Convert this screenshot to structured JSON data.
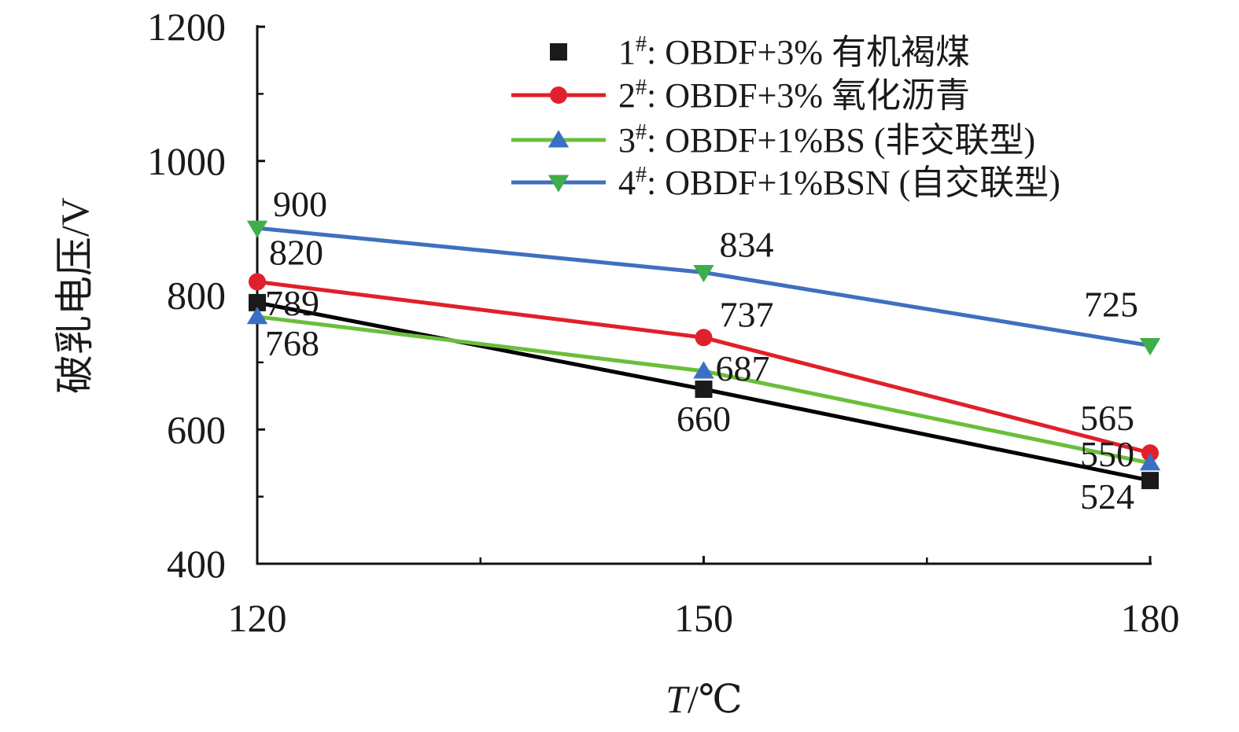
{
  "chart_data": {
    "type": "line",
    "title": "",
    "xlabel_italic": "T",
    "xlabel_rest": "/℃",
    "ylabel": "破乳电压/V",
    "x": [
      120,
      150,
      180
    ],
    "xticks": [
      "120",
      "150",
      "180"
    ],
    "xlim": [
      120,
      180
    ],
    "ylim": [
      400,
      1200
    ],
    "yticks": [
      "400",
      "600",
      "800",
      "1000",
      "1200"
    ],
    "grid": false,
    "legend_position": "top-right",
    "series": [
      {
        "name": "OBDF+3% 有机褐煤",
        "prefix_number": "1",
        "superscript": "#",
        "values": [
          789,
          660,
          524
        ],
        "labels": [
          "789",
          "660",
          "524"
        ],
        "line_color": "#000000",
        "marker_color": "#1a1a1a",
        "marker": "square",
        "show_line_in_legend": false
      },
      {
        "name": "OBDF+3% 氧化沥青",
        "prefix_number": "2",
        "superscript": "#",
        "values": [
          820,
          737,
          565
        ],
        "labels": [
          "820",
          "737",
          "565"
        ],
        "line_color": "#e0202a",
        "marker_color": "#e0202a",
        "marker": "circle",
        "show_line_in_legend": true
      },
      {
        "name": "OBDF+1%BS (非交联型)",
        "prefix_number": "3",
        "superscript": "#",
        "values": [
          768,
          687,
          550
        ],
        "labels": [
          "768",
          "687",
          "550"
        ],
        "line_color": "#6abf3a",
        "marker_color": "#3a6fc4",
        "marker": "triangle-up",
        "show_line_in_legend": true
      },
      {
        "name": "OBDF+1%BSN (自交联型)",
        "prefix_number": "4",
        "superscript": "#",
        "values": [
          900,
          834,
          725
        ],
        "labels": [
          "900",
          "834",
          "725"
        ],
        "line_color": "#3f6fbf",
        "marker_color": "#3fae4a",
        "marker": "triangle-down",
        "show_line_in_legend": true
      }
    ]
  }
}
